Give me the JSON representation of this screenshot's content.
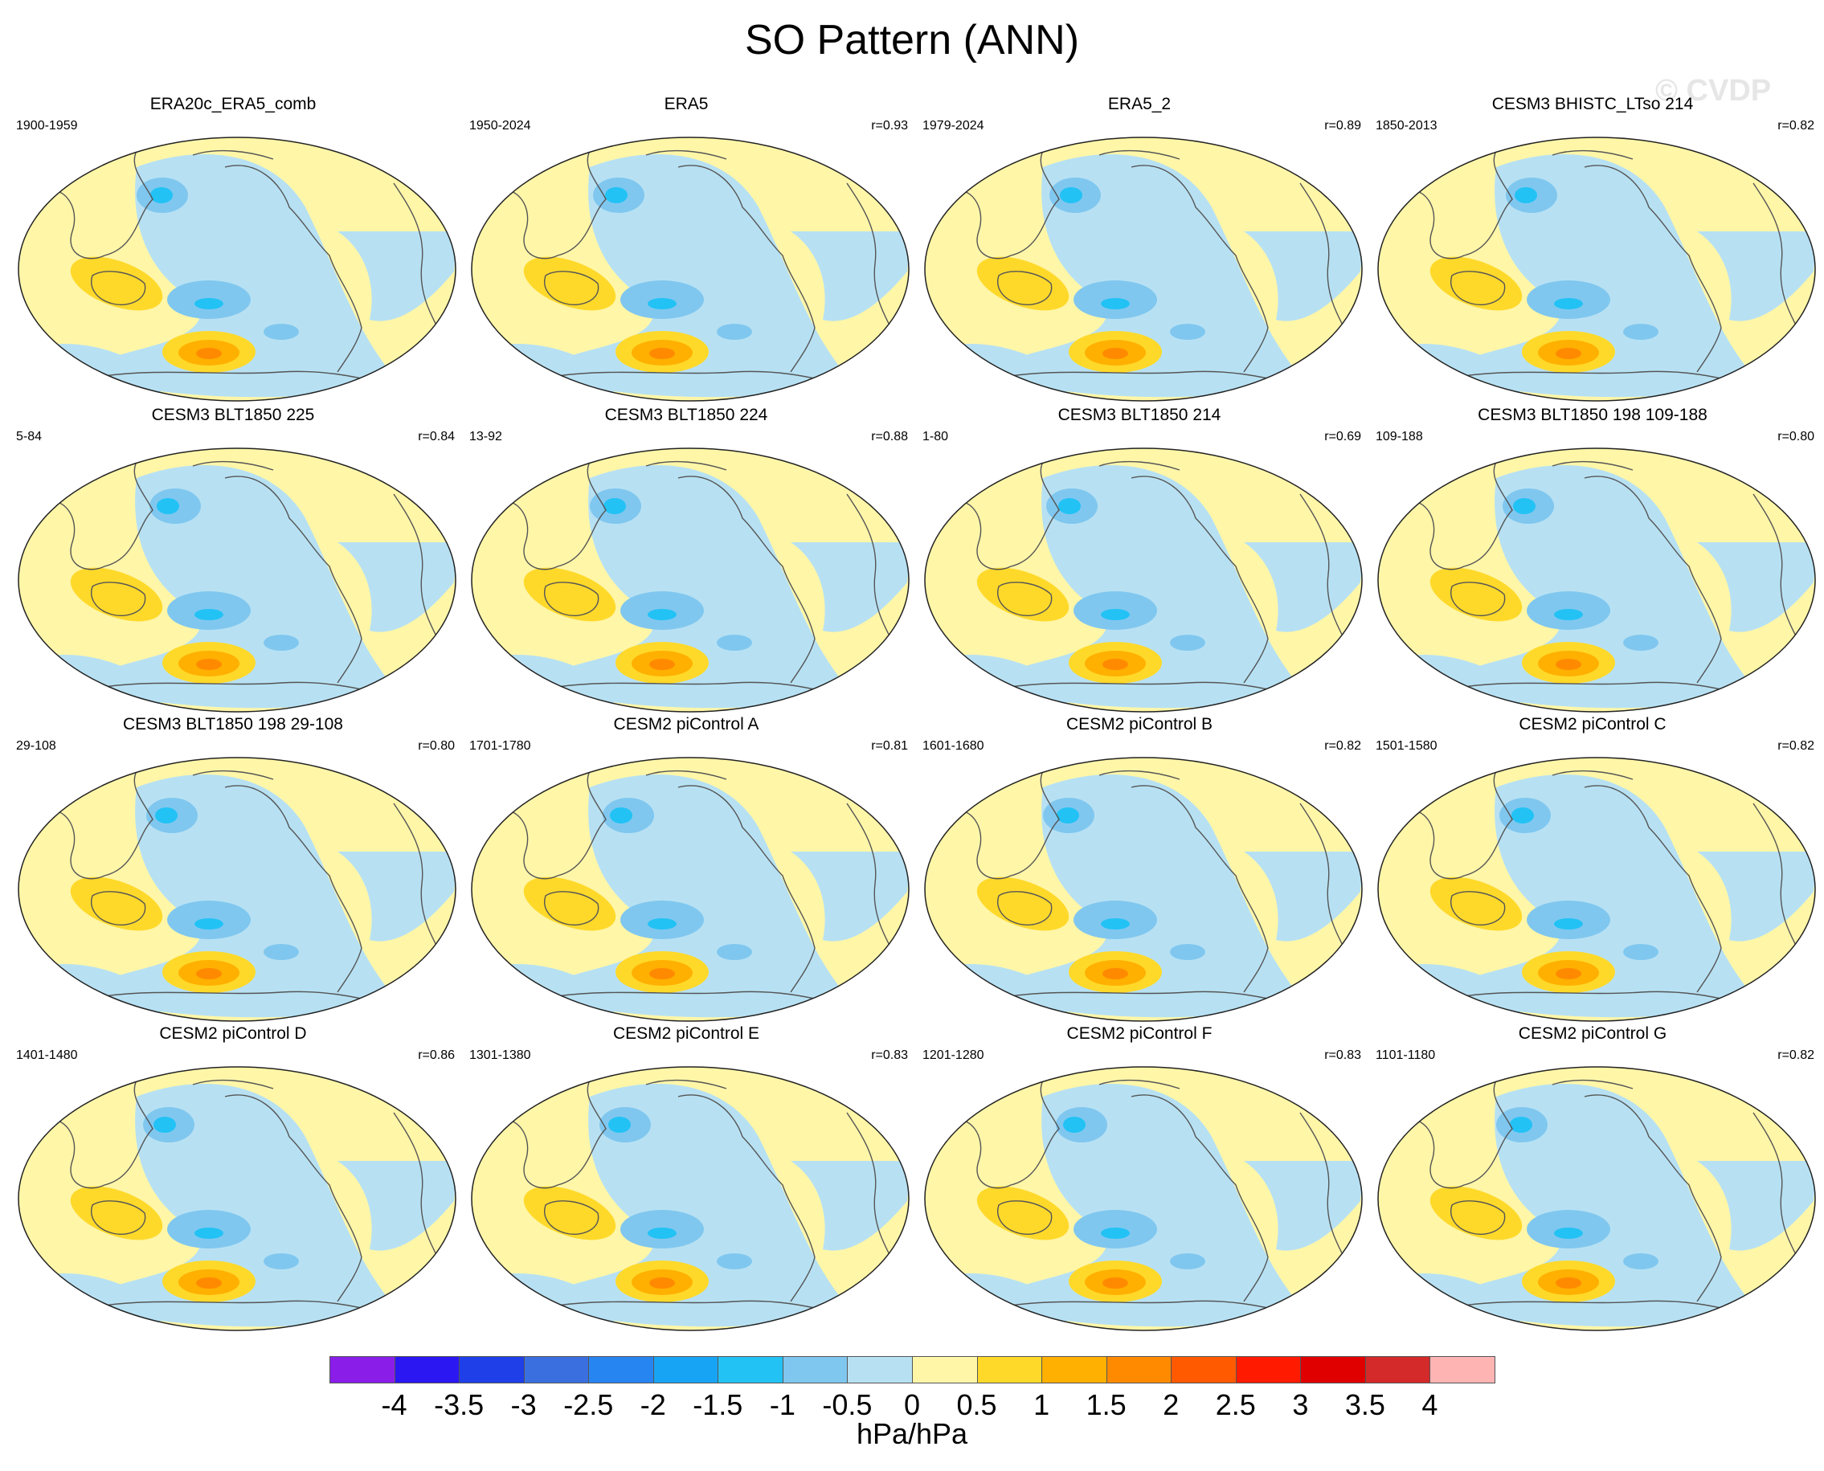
{
  "title": "SO Pattern (ANN)",
  "watermark": "© CVDP",
  "panels": [
    {
      "title": "ERA20c_ERA5_comb",
      "period": "1900-1959",
      "r": ""
    },
    {
      "title": "ERA5",
      "period": "1950-2024",
      "r": "r=0.93"
    },
    {
      "title": "ERA5_2",
      "period": "1979-2024",
      "r": "r=0.89"
    },
    {
      "title": "CESM3 BHISTC_LTso 214",
      "period": "1850-2013",
      "r": "r=0.82"
    },
    {
      "title": "CESM3 BLT1850 225",
      "period": "5-84",
      "r": "r=0.84"
    },
    {
      "title": "CESM3 BLT1850 224",
      "period": "13-92",
      "r": "r=0.88"
    },
    {
      "title": "CESM3 BLT1850 214",
      "period": "1-80",
      "r": "r=0.69"
    },
    {
      "title": "CESM3 BLT1850 198 109-188",
      "period": "109-188",
      "r": "r=0.80"
    },
    {
      "title": "CESM3 BLT1850 198 29-108",
      "period": "29-108",
      "r": "r=0.80"
    },
    {
      "title": "CESM2 piControl A",
      "period": "1701-1780",
      "r": "r=0.81"
    },
    {
      "title": "CESM2 piControl B",
      "period": "1601-1680",
      "r": "r=0.82"
    },
    {
      "title": "CESM2 piControl C",
      "period": "1501-1580",
      "r": "r=0.82"
    },
    {
      "title": "CESM2 piControl D",
      "period": "1401-1480",
      "r": "r=0.86"
    },
    {
      "title": "CESM2 piControl E",
      "period": "1301-1380",
      "r": "r=0.83"
    },
    {
      "title": "CESM2 piControl F",
      "period": "1201-1280",
      "r": "r=0.83"
    },
    {
      "title": "CESM2 piControl G",
      "period": "1101-1180",
      "r": "r=0.82"
    }
  ],
  "colorbar": {
    "units": "hPa/hPa",
    "labels": [
      "-4",
      "-3.5",
      "-3",
      "-2.5",
      "-2",
      "-1.5",
      "-1",
      "-0.5",
      "0",
      "0.5",
      "1",
      "1.5",
      "2",
      "2.5",
      "3",
      "3.5",
      "4"
    ],
    "colors": [
      "#8a1ee8",
      "#2b17f2",
      "#1f3fe8",
      "#3a6fe0",
      "#2785f2",
      "#18a4f5",
      "#22c2f5",
      "#80c7ef",
      "#b7e1f3",
      "#fff6a8",
      "#ffd92a",
      "#ffb000",
      "#ff8a00",
      "#ff5a00",
      "#ff1a00",
      "#e00000",
      "#d42a2a",
      "#ffb4b4"
    ]
  },
  "field_colors": {
    "ocean": "#b7e1f3",
    "negative_mid": "#80c7ef",
    "negative_strong": "#22c2f5",
    "land_pos": "#fff6a8",
    "positive_mid": "#ffd92a",
    "positive_strong": "#ffb000",
    "positive_core": "#ff8a00",
    "coast": "#555555",
    "edge": "#222222"
  }
}
